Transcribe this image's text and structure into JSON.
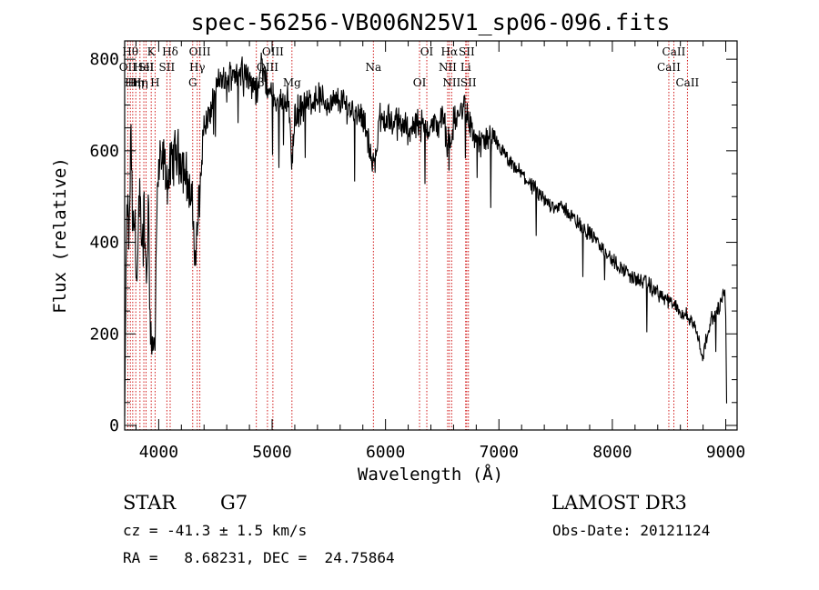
{
  "chart_data": {
    "type": "line",
    "title": "spec-56256-VB006N25V1_sp06-096.fits",
    "xlabel": "Wavelength (Å)",
    "ylabel": "Flux (relative)",
    "xlim": [
      3700,
      9100
    ],
    "ylim": [
      -10,
      840
    ],
    "xticks": [
      4000,
      5000,
      6000,
      7000,
      8000,
      9000
    ],
    "xtick_labels": [
      "4000",
      "5000",
      "6000",
      "7000",
      "8000",
      "9000"
    ],
    "yticks": [
      0,
      200,
      400,
      600,
      800
    ],
    "ytick_labels": [
      "0",
      "200",
      "400",
      "600",
      "800"
    ],
    "grid": false,
    "series": [
      {
        "name": "flux",
        "color": "#000000",
        "anchors": [
          [
            3700,
            20
          ],
          [
            3712,
            350
          ],
          [
            3725,
            480
          ],
          [
            3740,
            400
          ],
          [
            3755,
            660
          ],
          [
            3770,
            420
          ],
          [
            3790,
            450
          ],
          [
            3810,
            300
          ],
          [
            3830,
            550
          ],
          [
            3850,
            360
          ],
          [
            3870,
            480
          ],
          [
            3890,
            300
          ],
          [
            3910,
            470
          ],
          [
            3930,
            200
          ],
          [
            3950,
            180
          ],
          [
            3968,
            160
          ],
          [
            3980,
            430
          ],
          [
            4000,
            560
          ],
          [
            4040,
            580
          ],
          [
            4080,
            530
          ],
          [
            4100,
            560
          ],
          [
            4150,
            600
          ],
          [
            4200,
            580
          ],
          [
            4250,
            540
          ],
          [
            4300,
            470
          ],
          [
            4320,
            360
          ],
          [
            4340,
            420
          ],
          [
            4360,
            520
          ],
          [
            4380,
            600
          ],
          [
            4400,
            650
          ],
          [
            4450,
            680
          ],
          [
            4500,
            730
          ],
          [
            4550,
            760
          ],
          [
            4600,
            740
          ],
          [
            4650,
            780
          ],
          [
            4700,
            760
          ],
          [
            4750,
            790
          ],
          [
            4800,
            750
          ],
          [
            4860,
            730
          ],
          [
            4900,
            790
          ],
          [
            4950,
            740
          ],
          [
            5000,
            720
          ],
          [
            5050,
            700
          ],
          [
            5100,
            720
          ],
          [
            5150,
            700
          ],
          [
            5175,
            560
          ],
          [
            5200,
            680
          ],
          [
            5300,
            700
          ],
          [
            5400,
            720
          ],
          [
            5500,
            700
          ],
          [
            5600,
            710
          ],
          [
            5700,
            690
          ],
          [
            5800,
            680
          ],
          [
            5893,
            560
          ],
          [
            5950,
            670
          ],
          [
            6000,
            670
          ],
          [
            6100,
            660
          ],
          [
            6200,
            650
          ],
          [
            6300,
            660
          ],
          [
            6400,
            650
          ],
          [
            6500,
            670
          ],
          [
            6563,
            610
          ],
          [
            6600,
            660
          ],
          [
            6700,
            700
          ],
          [
            6750,
            650
          ],
          [
            6800,
            620
          ],
          [
            6900,
            620
          ],
          [
            7000,
            610
          ],
          [
            7100,
            570
          ],
          [
            7200,
            550
          ],
          [
            7300,
            520
          ],
          [
            7400,
            490
          ],
          [
            7500,
            480
          ],
          [
            7600,
            470
          ],
          [
            7700,
            440
          ],
          [
            7800,
            420
          ],
          [
            7900,
            390
          ],
          [
            8000,
            360
          ],
          [
            8100,
            340
          ],
          [
            8200,
            320
          ],
          [
            8300,
            310
          ],
          [
            8400,
            290
          ],
          [
            8500,
            270
          ],
          [
            8600,
            250
          ],
          [
            8700,
            230
          ],
          [
            8750,
            200
          ],
          [
            8800,
            150
          ],
          [
            8850,
            220
          ],
          [
            8900,
            240
          ],
          [
            8950,
            260
          ],
          [
            8990,
            300
          ],
          [
            9000,
            240
          ],
          [
            9010,
            0
          ]
        ]
      }
    ],
    "spectral_lines": [
      {
        "wavelength": 3727,
        "label": "OII",
        "row": 1
      },
      {
        "wavelength": 3750,
        "label": "Hθ",
        "row": 0
      },
      {
        "wavelength": 3771,
        "label": "Hη",
        "row": 2
      },
      {
        "wavelength": 3798,
        "label": "Hη",
        "row": 2
      },
      {
        "wavelength": 3835,
        "label": "Hη",
        "row": 2
      },
      {
        "wavelength": 3869,
        "label": "HeI",
        "row": 1
      },
      {
        "wavelength": 3889,
        "label": "SII",
        "row": 1
      },
      {
        "wavelength": 3934,
        "label": "K",
        "row": 0
      },
      {
        "wavelength": 3968,
        "label": "H",
        "row": 2
      },
      {
        "wavelength": 4101,
        "label": "Hδ",
        "row": 0
      },
      {
        "wavelength": 4072,
        "label": "SII",
        "row": 1
      },
      {
        "wavelength": 4300,
        "label": "G",
        "row": 2
      },
      {
        "wavelength": 4340,
        "label": "Hγ",
        "row": 1
      },
      {
        "wavelength": 4363,
        "label": "OIII",
        "row": 0
      },
      {
        "wavelength": 4861,
        "label": "Hβ",
        "row": 2
      },
      {
        "wavelength": 4959,
        "label": "OIII",
        "row": 1
      },
      {
        "wavelength": 5007,
        "label": "OIII",
        "row": 0
      },
      {
        "wavelength": 5175,
        "label": "Mg",
        "row": 2
      },
      {
        "wavelength": 5893,
        "label": "Na",
        "row": 1
      },
      {
        "wavelength": 6300,
        "label": "OI",
        "row": 2
      },
      {
        "wavelength": 6364,
        "label": "OI",
        "row": 0
      },
      {
        "wavelength": 6548,
        "label": "NII",
        "row": 1
      },
      {
        "wavelength": 6563,
        "label": "Hα",
        "row": 0
      },
      {
        "wavelength": 6583,
        "label": "NII",
        "row": 2
      },
      {
        "wavelength": 6707,
        "label": "Li",
        "row": 1
      },
      {
        "wavelength": 6716,
        "label": "SII",
        "row": 0
      },
      {
        "wavelength": 6731,
        "label": "SII",
        "row": 2
      },
      {
        "wavelength": 8498,
        "label": "CaII",
        "row": 1
      },
      {
        "wavelength": 8542,
        "label": "CaII",
        "row": 0
      },
      {
        "wavelength": 8662,
        "label": "CaII",
        "row": 2
      }
    ],
    "line_color": "#cc0000"
  },
  "info": {
    "class": "STAR",
    "subclass": "G7",
    "survey": "LAMOST DR3",
    "cz": "cz = -41.3 ± 1.5 km/s",
    "obs_date": "Obs-Date: 20121124",
    "coords": "RA =   8.68231, DEC =  24.75864"
  }
}
